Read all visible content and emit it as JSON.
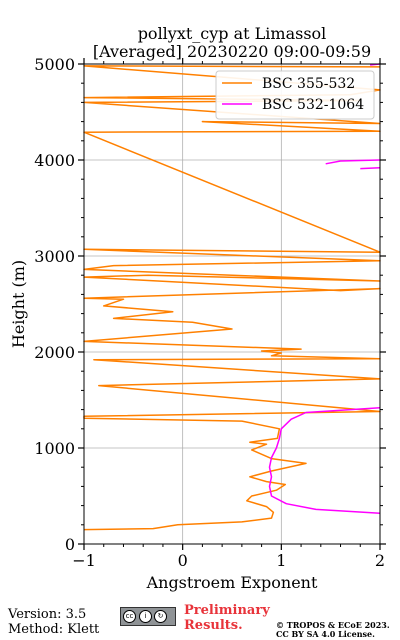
{
  "title": {
    "line1": "pollyxt_cyp at Limassol",
    "line2": "[Averaged] 20230220 09:00-09:59"
  },
  "footer": {
    "version": "Version: 3.5",
    "method": "Method: Klett",
    "preliminary_line1": "Preliminary",
    "preliminary_line2": "Results.",
    "copyright_line1": "© TROPOS & ECoE 2023.",
    "copyright_line2": "CC BY SA 4.0 License."
  },
  "chart_data": {
    "type": "line",
    "xlabel": "Angstroem Exponent",
    "ylabel": "Height (m)",
    "xlim": [
      -1,
      2
    ],
    "ylim": [
      0,
      5000
    ],
    "xticks": [
      -1,
      0,
      1,
      2
    ],
    "yticks": [
      0,
      1000,
      2000,
      3000,
      4000,
      5000
    ],
    "xtick_labels": [
      "−1",
      "0",
      "1",
      "2"
    ],
    "ytick_labels": [
      "0",
      "1000",
      "2000",
      "3000",
      "4000",
      "5000"
    ],
    "grid": true,
    "legend_position": "top-right",
    "series": [
      {
        "name": "BSC 355-532",
        "color": "#ff8000",
        "points": [
          [
            -1.0,
            150
          ],
          [
            -0.3,
            160
          ],
          [
            -0.05,
            200
          ],
          [
            0.6,
            230
          ],
          [
            0.9,
            270
          ],
          [
            0.92,
            330
          ],
          [
            0.85,
            390
          ],
          [
            0.65,
            450
          ],
          [
            0.7,
            500
          ],
          [
            0.95,
            560
          ],
          [
            1.04,
            620
          ],
          [
            0.85,
            650
          ],
          [
            0.68,
            700
          ],
          [
            0.9,
            760
          ],
          [
            1.25,
            840
          ],
          [
            0.9,
            890
          ],
          [
            0.7,
            980
          ],
          [
            0.85,
            1040
          ],
          [
            0.68,
            1060
          ],
          [
            0.96,
            1100
          ],
          [
            0.98,
            1200
          ],
          [
            0.6,
            1280
          ],
          [
            -1.0,
            1310
          ],
          [
            -1.0,
            1330
          ],
          [
            2.0,
            1380
          ],
          [
            -0.85,
            1650
          ],
          [
            2.0,
            1720
          ],
          [
            -0.9,
            1920
          ],
          [
            2.0,
            1930
          ],
          [
            0.9,
            1960
          ],
          [
            1.0,
            1990
          ],
          [
            0.8,
            2010
          ],
          [
            1.2,
            2030
          ],
          [
            -1.0,
            2110
          ],
          [
            0.5,
            2240
          ],
          [
            0.1,
            2310
          ],
          [
            -0.7,
            2350
          ],
          [
            -0.1,
            2420
          ],
          [
            -0.8,
            2480
          ],
          [
            -0.6,
            2550
          ],
          [
            -1.0,
            2560
          ],
          [
            2.0,
            2660
          ],
          [
            1.6,
            2640
          ],
          [
            -1.0,
            2780
          ],
          [
            -0.35,
            2800
          ],
          [
            2.0,
            2740
          ],
          [
            -1.0,
            2860
          ],
          [
            -0.7,
            2900
          ],
          [
            2.0,
            2950
          ],
          [
            -1.0,
            3070
          ],
          [
            2.0,
            3040
          ],
          [
            -1.0,
            4290
          ],
          [
            2.0,
            4300
          ],
          [
            0.2,
            4400
          ],
          [
            2.0,
            4380
          ],
          [
            -1.0,
            4600
          ],
          [
            1.8,
            4620
          ],
          [
            -1.0,
            4650
          ],
          [
            1.7,
            4680
          ],
          [
            2.0,
            4730
          ],
          [
            -1.0,
            4980
          ],
          [
            2.0,
            4970
          ]
        ]
      },
      {
        "name": "BSC 532-1064",
        "color": "#ff00ff",
        "points": [
          [
            2.0,
            320
          ],
          [
            1.35,
            360
          ],
          [
            1.05,
            420
          ],
          [
            0.9,
            500
          ],
          [
            0.88,
            600
          ],
          [
            0.9,
            700
          ],
          [
            0.88,
            800
          ],
          [
            0.9,
            900
          ],
          [
            0.95,
            1000
          ],
          [
            0.98,
            1100
          ],
          [
            1.0,
            1200
          ],
          [
            1.1,
            1300
          ],
          [
            1.25,
            1370
          ],
          [
            2.0,
            1420
          ],
          null,
          [
            1.45,
            3960
          ],
          [
            1.6,
            3990
          ],
          [
            2.0,
            4000
          ],
          null,
          [
            1.8,
            3910
          ],
          [
            2.0,
            3920
          ],
          null,
          [
            1.9,
            4990
          ],
          [
            2.0,
            5000
          ]
        ]
      }
    ]
  }
}
